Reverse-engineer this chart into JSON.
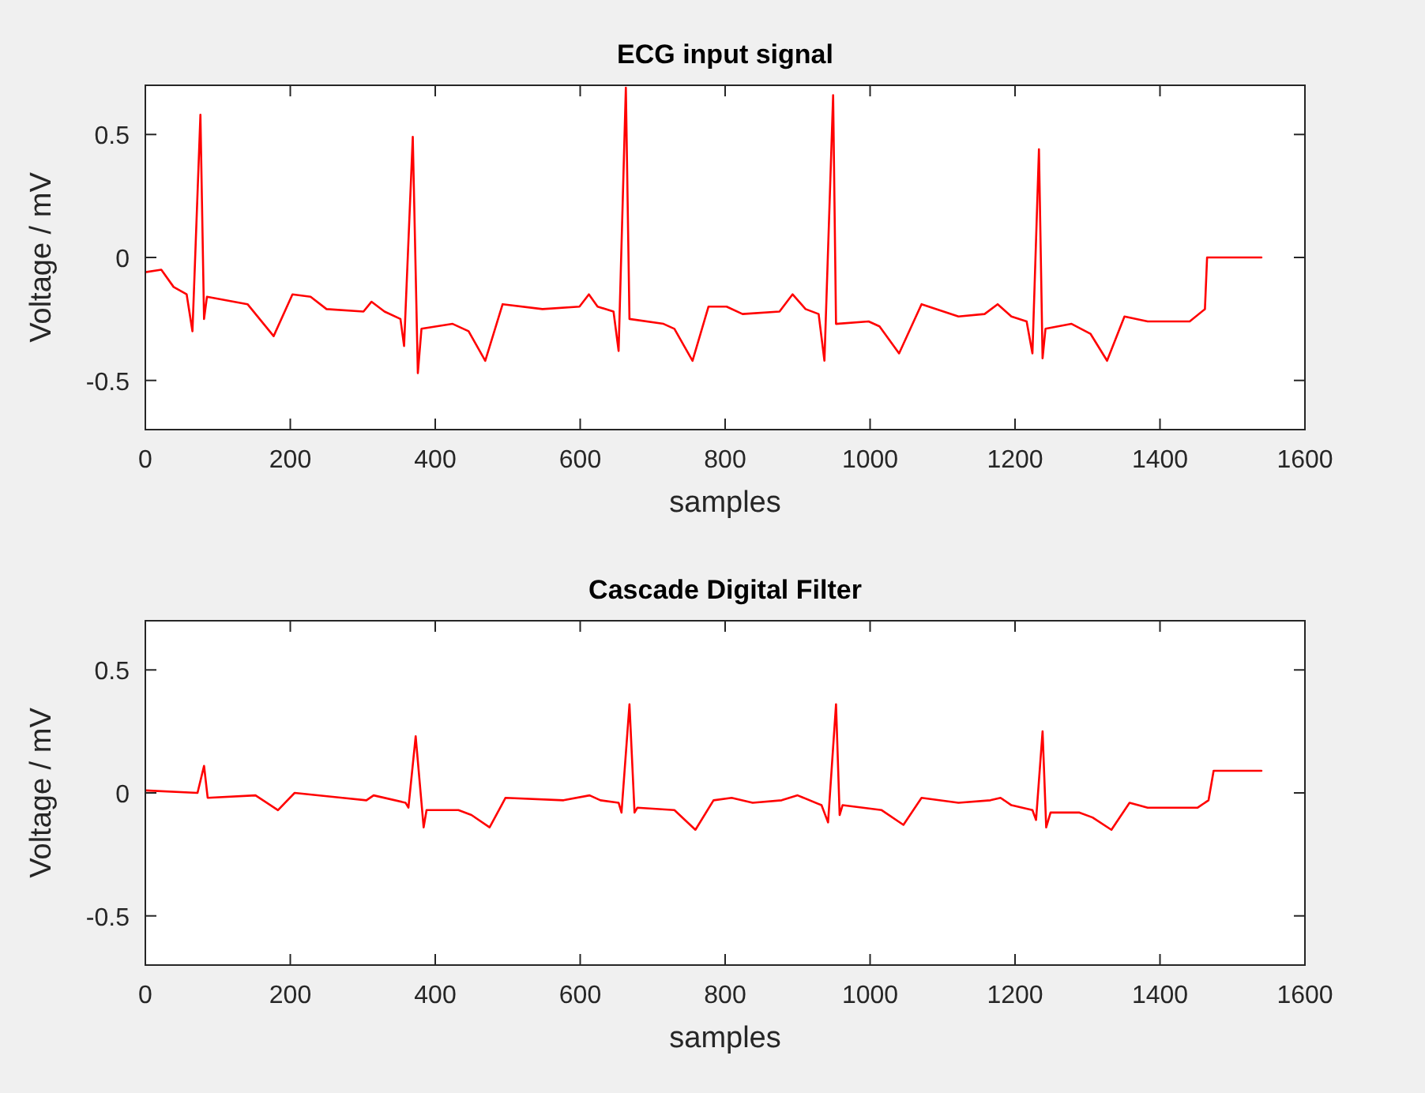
{
  "chart_data": [
    {
      "type": "line",
      "title": "ECG input signal",
      "xlabel": "samples",
      "ylabel": "Voltage / mV",
      "xlim": [
        0,
        1600
      ],
      "xticks": [
        0,
        200,
        400,
        600,
        800,
        1000,
        1200,
        1400,
        1600
      ],
      "ylim": [
        -0.7,
        0.7
      ],
      "yticks": [
        -0.5,
        0,
        0.5
      ],
      "x": [
        0,
        22,
        39,
        57,
        65,
        76,
        81,
        85,
        141,
        177,
        203,
        228,
        250,
        301,
        312,
        330,
        352,
        357,
        369,
        376,
        381,
        424,
        446,
        469,
        493,
        548,
        599,
        612,
        624,
        646,
        653,
        663,
        668,
        715,
        730,
        755,
        777,
        802,
        824,
        875,
        893,
        911,
        929,
        937,
        949,
        953,
        998,
        1013,
        1040,
        1071,
        1122,
        1158,
        1176,
        1195,
        1216,
        1224,
        1233,
        1238,
        1242,
        1278,
        1304,
        1327,
        1351,
        1383,
        1441,
        1462,
        1465,
        1540
      ],
      "series": [
        {
          "color": "#ff0000",
          "values": [
            -0.06,
            -0.05,
            -0.12,
            -0.15,
            -0.3,
            0.58,
            -0.25,
            -0.16,
            -0.19,
            -0.32,
            -0.15,
            -0.16,
            -0.21,
            -0.22,
            -0.18,
            -0.22,
            -0.25,
            -0.36,
            0.49,
            -0.47,
            -0.29,
            -0.27,
            -0.3,
            -0.42,
            -0.19,
            -0.21,
            -0.2,
            -0.15,
            -0.2,
            -0.22,
            -0.38,
            0.69,
            -0.25,
            -0.27,
            -0.29,
            -0.42,
            -0.2,
            -0.2,
            -0.23,
            -0.22,
            -0.15,
            -0.21,
            -0.23,
            -0.42,
            0.66,
            -0.27,
            -0.26,
            -0.28,
            -0.39,
            -0.19,
            -0.24,
            -0.23,
            -0.19,
            -0.24,
            -0.26,
            -0.39,
            0.44,
            -0.41,
            -0.29,
            -0.27,
            -0.31,
            -0.42,
            -0.24,
            -0.26,
            -0.26,
            -0.21,
            0,
            0
          ]
        }
      ]
    },
    {
      "type": "line",
      "title": "Cascade Digital Filter",
      "xlabel": "samples",
      "ylabel": "Voltage / mV",
      "xlim": [
        0,
        1600
      ],
      "xticks": [
        0,
        200,
        400,
        600,
        800,
        1000,
        1200,
        1400,
        1600
      ],
      "ylim": [
        -0.7,
        0.7
      ],
      "yticks": [
        -0.5,
        0,
        0.5
      ],
      "x": [
        0,
        72,
        81,
        86,
        152,
        183,
        206,
        272,
        305,
        315,
        359,
        363,
        373,
        384,
        388,
        432,
        450,
        475,
        497,
        577,
        613,
        628,
        653,
        657,
        668,
        675,
        679,
        730,
        759,
        784,
        809,
        838,
        878,
        900,
        933,
        942,
        953,
        958,
        962,
        1016,
        1046,
        1071,
        1122,
        1166,
        1180,
        1195,
        1224,
        1229,
        1238,
        1243,
        1249,
        1289,
        1307,
        1333,
        1358,
        1383,
        1452,
        1467,
        1474,
        1540
      ],
      "series": [
        {
          "color": "#ff0000",
          "values": [
            0.01,
            0,
            0.11,
            -0.02,
            -0.01,
            -0.07,
            0,
            -0.02,
            -0.03,
            -0.01,
            -0.04,
            -0.06,
            0.23,
            -0.14,
            -0.07,
            -0.07,
            -0.09,
            -0.14,
            -0.02,
            -0.03,
            -0.01,
            -0.03,
            -0.04,
            -0.08,
            0.36,
            -0.08,
            -0.06,
            -0.07,
            -0.15,
            -0.03,
            -0.02,
            -0.04,
            -0.03,
            -0.01,
            -0.05,
            -0.12,
            0.36,
            -0.09,
            -0.05,
            -0.07,
            -0.13,
            -0.02,
            -0.04,
            -0.03,
            -0.02,
            -0.05,
            -0.07,
            -0.11,
            0.25,
            -0.14,
            -0.08,
            -0.08,
            -0.1,
            -0.15,
            -0.04,
            -0.06,
            -0.06,
            -0.03,
            0.09,
            0.09
          ]
        }
      ]
    }
  ]
}
